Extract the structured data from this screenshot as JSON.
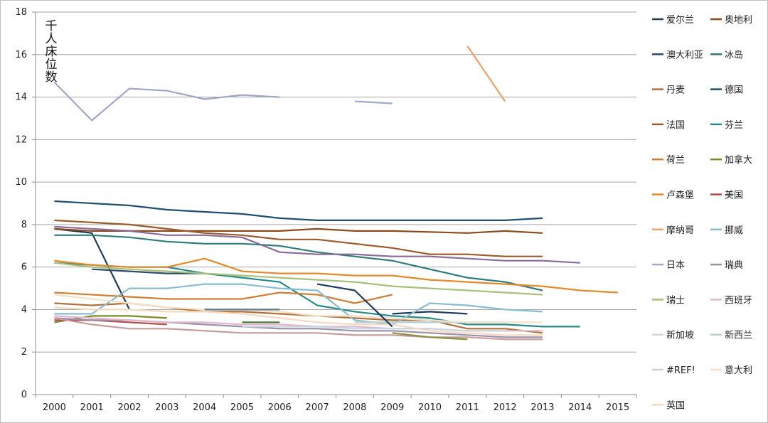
{
  "chart_data": {
    "type": "line",
    "ylabel": "千人床位数",
    "ylim": [
      0,
      18
    ],
    "yticks": [
      0,
      2,
      4,
      6,
      8,
      10,
      12,
      14,
      16,
      18
    ],
    "x": [
      2000,
      2001,
      2002,
      2003,
      2004,
      2005,
      2006,
      2007,
      2008,
      2009,
      2010,
      2011,
      2012,
      2013,
      2014,
      2015
    ],
    "grid": true,
    "legend_position": "right",
    "series": [
      {
        "name": "爱尔兰",
        "color": "#1f3b5c",
        "values": [
          7.8,
          7.6,
          4.0,
          null,
          null,
          null,
          null,
          null,
          null,
          3.8,
          3.9,
          3.8,
          null,
          null,
          null,
          null
        ]
      },
      {
        "name": "奥地利",
        "color": "#8b4a1c",
        "values": [
          7.8,
          7.7,
          7.7,
          7.7,
          7.7,
          7.7,
          7.7,
          7.8,
          7.7,
          7.7,
          7.65,
          7.6,
          7.7,
          7.6,
          null,
          null
        ]
      },
      {
        "name": "澳大利亚",
        "color": "#2e4b6e",
        "values": [
          null,
          5.9,
          5.8,
          5.7,
          5.7,
          null,
          null,
          null,
          null,
          null,
          null,
          null,
          null,
          null,
          null,
          null
        ]
      },
      {
        "name": "冰岛",
        "color": "#2f7d7a",
        "values": [
          7.5,
          7.5,
          7.4,
          7.2,
          7.1,
          7.1,
          7.0,
          6.7,
          6.5,
          6.3,
          5.9,
          5.5,
          5.3,
          4.9,
          null,
          null
        ]
      },
      {
        "name": "丹麦",
        "color": "#b0703a",
        "values": [
          4.3,
          4.2,
          4.3,
          4.1,
          3.9,
          3.9,
          3.8,
          3.7,
          3.6,
          3.5,
          3.5,
          3.1,
          3.1,
          2.9,
          null,
          null
        ]
      },
      {
        "name": "德国",
        "color": "#1e4f6e",
        "values": [
          9.1,
          9.0,
          8.9,
          8.7,
          8.6,
          8.5,
          8.3,
          8.2,
          8.2,
          8.2,
          8.2,
          8.2,
          8.2,
          8.3,
          null,
          null
        ]
      },
      {
        "name": "法国",
        "color": "#9a5a2a",
        "values": [
          8.2,
          8.1,
          8.0,
          7.8,
          7.6,
          7.5,
          7.3,
          7.3,
          7.1,
          6.9,
          6.6,
          6.6,
          6.5,
          6.5,
          null,
          null
        ]
      },
      {
        "name": "芬兰",
        "color": "#2a8a8a",
        "values": [
          6.2,
          6.1,
          6.0,
          6.0,
          5.7,
          5.5,
          5.3,
          4.2,
          3.9,
          3.7,
          3.6,
          3.3,
          3.3,
          3.2,
          3.2,
          null
        ]
      },
      {
        "name": "荷兰",
        "color": "#d17f34",
        "values": [
          4.8,
          4.7,
          4.6,
          4.5,
          4.5,
          4.5,
          4.8,
          4.7,
          4.3,
          4.7,
          null,
          null,
          null,
          null,
          null,
          null
        ]
      },
      {
        "name": "加拿大",
        "color": "#7a8b2a",
        "values": [
          3.4,
          3.7,
          3.7,
          3.6,
          null,
          null,
          null,
          null,
          null,
          null,
          null,
          null,
          2.7,
          null,
          null,
          null
        ]
      },
      {
        "name": "卢森堡",
        "color": "#e48a2a",
        "values": [
          6.3,
          6.1,
          6.0,
          6.0,
          6.4,
          5.8,
          5.7,
          5.7,
          5.6,
          5.6,
          5.4,
          5.3,
          5.2,
          5.1,
          4.9,
          4.8
        ]
      },
      {
        "name": "美国",
        "color": "#b0514f",
        "values": [
          3.5,
          3.5,
          3.4,
          3.3,
          null,
          null,
          null,
          null,
          null,
          null,
          null,
          null,
          null,
          null,
          null,
          null
        ]
      },
      {
        "name": "摩纳哥",
        "color": "#f0a066",
        "values": [
          null,
          null,
          null,
          null,
          null,
          null,
          null,
          null,
          null,
          null,
          null,
          16.4,
          13.8,
          null,
          null,
          null
        ]
      },
      {
        "name": "挪威",
        "color": "#89bcd0",
        "values": [
          3.8,
          3.8,
          5.0,
          5.0,
          5.2,
          5.2,
          5.0,
          4.9,
          3.5,
          3.3,
          4.3,
          4.2,
          4.0,
          3.9,
          null,
          null
        ]
      },
      {
        "name": "日本",
        "color": "#9fa8c8",
        "values": [
          14.7,
          12.9,
          14.4,
          14.3,
          13.9,
          14.1,
          14.0,
          null,
          13.8,
          13.7,
          null,
          null,
          null,
          null,
          null,
          null
        ]
      },
      {
        "name": "瑞典",
        "color": "#9c8fa8",
        "values": [
          3.6,
          3.5,
          3.5,
          3.4,
          3.3,
          3.2,
          3.1,
          3.1,
          3.0,
          3.0,
          2.9,
          2.8,
          2.7,
          2.7,
          null,
          null
        ]
      },
      {
        "name": "瑞士",
        "color": "#a9c07a",
        "values": [
          6.2,
          6.0,
          5.9,
          5.8,
          5.7,
          5.6,
          5.5,
          5.4,
          5.3,
          5.1,
          5.0,
          4.9,
          4.8,
          4.7,
          null,
          null
        ]
      },
      {
        "name": "西班牙",
        "color": "#e0b8cc",
        "values": [
          3.7,
          3.6,
          3.5,
          3.4,
          3.4,
          3.3,
          3.3,
          3.2,
          3.2,
          3.1,
          3.1,
          3.0,
          3.0,
          3.0,
          null,
          null
        ]
      },
      {
        "name": "新加坡",
        "color": "#c7d6e0",
        "values": [
          null,
          null,
          null,
          null,
          null,
          3.2,
          3.2,
          3.2,
          3.1,
          3.1,
          3.1,
          3.0,
          3.0,
          null,
          null,
          null
        ]
      },
      {
        "name": "新西兰",
        "color": "#b8cfd4",
        "values": [
          null,
          null,
          null,
          null,
          null,
          null,
          null,
          null,
          3.4,
          3.4,
          3.4,
          3.4,
          3.4,
          null,
          null,
          null
        ]
      },
      {
        "name": "#REF!",
        "color": "#cfcfcf",
        "values": [
          null,
          null,
          null,
          null,
          null,
          null,
          null,
          null,
          null,
          null,
          null,
          null,
          null,
          null,
          null,
          null
        ]
      },
      {
        "name": "意大利",
        "color": "#f2e3c8",
        "values": [
          4.7,
          4.5,
          4.3,
          4.1,
          4.0,
          4.0,
          3.9,
          3.7,
          3.7,
          3.6,
          3.5,
          3.4,
          3.4,
          3.4,
          null,
          null
        ]
      },
      {
        "name": "英国",
        "color": "#f5d9c0",
        "values": [
          4.1,
          4.0,
          4.0,
          3.9,
          3.9,
          3.8,
          3.6,
          3.4,
          3.3,
          3.3,
          3.0,
          2.9,
          2.8,
          2.8,
          null,
          null
        ]
      },
      {
        "name": "",
        "color": "#8a6a9a",
        "values": [
          7.9,
          7.8,
          7.7,
          7.5,
          7.5,
          7.4,
          6.7,
          6.6,
          6.6,
          6.5,
          6.5,
          6.4,
          6.3,
          6.3,
          6.2,
          null
        ]
      },
      {
        "name": "",
        "color": "#c69a9a",
        "values": [
          3.6,
          3.3,
          3.1,
          3.1,
          3.0,
          2.9,
          2.9,
          2.9,
          2.8,
          2.8,
          2.7,
          2.7,
          2.6,
          2.6,
          null,
          null
        ]
      },
      {
        "name": "",
        "color": "#5c7a8e",
        "values": [
          null,
          null,
          null,
          null,
          4.0,
          4.0,
          4.0,
          null,
          null,
          null,
          null,
          null,
          null,
          null,
          null,
          null
        ]
      },
      {
        "name": "",
        "color": "#4c7a3a",
        "values": [
          null,
          null,
          null,
          null,
          null,
          3.4,
          3.4,
          null,
          null,
          null,
          null,
          null,
          null,
          null,
          null,
          null
        ]
      },
      {
        "name": "",
        "color": "#1f3b5c",
        "values": [
          null,
          null,
          null,
          null,
          null,
          null,
          null,
          5.2,
          4.9,
          3.2,
          null,
          null,
          null,
          null,
          null,
          null
        ]
      },
      {
        "name": "",
        "color": "#8a8f3a",
        "values": [
          null,
          null,
          null,
          null,
          null,
          null,
          null,
          null,
          null,
          2.9,
          2.7,
          2.6,
          null,
          null,
          null,
          null
        ]
      }
    ]
  }
}
